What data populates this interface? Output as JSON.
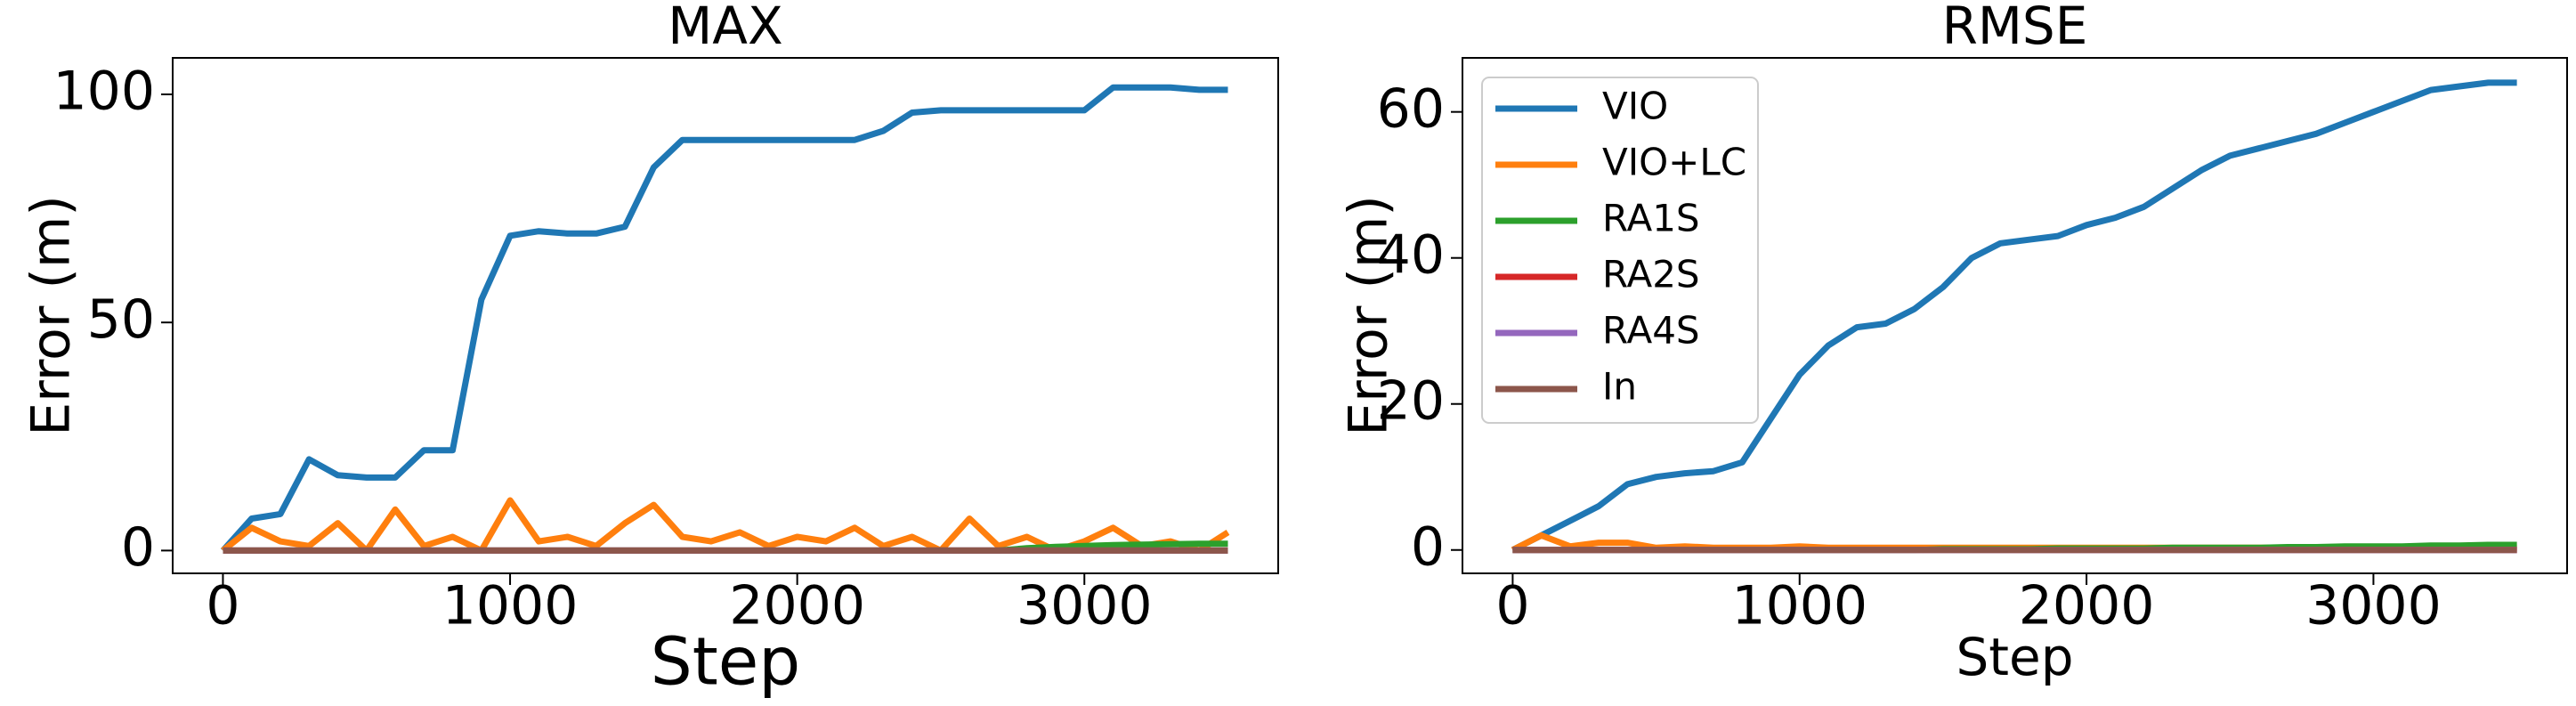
{
  "chart_data": [
    {
      "type": "line",
      "title": "MAX",
      "x_label": "Step",
      "y_label": "Error (m)",
      "x": [
        0,
        100,
        200,
        300,
        400,
        500,
        600,
        700,
        800,
        900,
        1000,
        1100,
        1200,
        1300,
        1400,
        1500,
        1600,
        1700,
        1800,
        1900,
        2000,
        2100,
        2200,
        2300,
        2400,
        2500,
        2600,
        2700,
        2800,
        2900,
        3000,
        3100,
        3200,
        3300,
        3400,
        3500
      ],
      "xlim": [
        -175,
        3675
      ],
      "ylim": [
        -5,
        108
      ],
      "xticks": [
        0,
        1000,
        2000,
        3000
      ],
      "yticks": [
        0,
        50,
        100
      ],
      "series": [
        {
          "color": "#1f77b4",
          "values": [
            0,
            7,
            8,
            20,
            16.5,
            16,
            16,
            22,
            22,
            55,
            69,
            70,
            69.5,
            69.5,
            71,
            84,
            90,
            90,
            90,
            90,
            90,
            90,
            90,
            92,
            96,
            96.5,
            96.5,
            96.5,
            96.5,
            96.5,
            96.5,
            101.5,
            101.5,
            101.5,
            101,
            101
          ]
        },
        {
          "color": "#ff7f0e",
          "values": [
            0,
            5,
            2,
            1,
            6,
            0,
            9,
            1,
            3,
            0,
            11,
            2,
            3,
            1,
            6,
            10,
            3,
            2,
            4,
            1,
            3,
            2,
            5,
            1,
            3,
            0,
            7,
            1,
            3,
            0,
            2,
            5,
            1,
            2,
            0,
            4
          ]
        },
        {
          "color": "#2ca02c",
          "values": [
            0,
            0,
            0,
            0,
            0,
            0,
            0,
            0,
            0,
            0,
            0,
            0,
            0,
            0,
            0,
            0,
            0,
            0,
            0,
            0,
            0,
            0,
            0,
            0,
            0,
            0,
            0,
            0,
            0.5,
            0.8,
            1,
            1.2,
            1.3,
            1.4,
            1.5,
            1.5
          ]
        },
        {
          "color": "#d62728",
          "values": [
            0,
            0,
            0,
            0,
            0,
            0,
            0,
            0,
            0,
            0,
            0,
            0,
            0,
            0,
            0,
            0,
            0,
            0,
            0,
            0,
            0,
            0,
            0,
            0,
            0,
            0,
            0,
            0,
            0,
            0,
            0,
            0,
            0,
            0,
            0,
            0
          ]
        },
        {
          "color": "#9467bd",
          "values": [
            0,
            0,
            0,
            0,
            0,
            0,
            0,
            0,
            0,
            0,
            0,
            0,
            0,
            0,
            0,
            0,
            0,
            0,
            0,
            0,
            0,
            0,
            0,
            0,
            0,
            0,
            0,
            0,
            0,
            0,
            0,
            0,
            0,
            0,
            0,
            0
          ]
        },
        {
          "color": "#8c564b",
          "values": [
            0,
            0,
            0,
            0,
            0,
            0,
            0,
            0,
            0,
            0,
            0,
            0,
            0,
            0,
            0,
            0,
            0,
            0,
            0,
            0,
            0,
            0,
            0,
            0,
            0,
            0,
            0,
            0,
            0,
            0,
            0,
            0,
            0,
            0,
            0,
            0
          ]
        }
      ]
    },
    {
      "type": "line",
      "title": "RMSE",
      "x_label": "Step",
      "y_label": "Error (m)",
      "legend": "upper left",
      "x": [
        0,
        100,
        200,
        300,
        400,
        500,
        600,
        700,
        800,
        900,
        1000,
        1100,
        1200,
        1300,
        1400,
        1500,
        1600,
        1700,
        1800,
        1900,
        2000,
        2100,
        2200,
        2300,
        2400,
        2500,
        2600,
        2700,
        2800,
        2900,
        3000,
        3100,
        3200,
        3300,
        3400,
        3500
      ],
      "xlim": [
        -175,
        3675
      ],
      "ylim": [
        -3.2,
        67.4
      ],
      "xticks": [
        0,
        1000,
        2000,
        3000
      ],
      "yticks": [
        0,
        20,
        40,
        60
      ],
      "series": [
        {
          "name": "VIO",
          "color": "#1f77b4",
          "values": [
            0,
            2,
            4,
            6,
            9,
            10,
            10.5,
            10.8,
            12,
            18,
            24,
            28,
            30.5,
            31,
            33,
            36,
            40,
            42,
            42.5,
            43,
            44.5,
            45.5,
            47,
            49.5,
            52,
            54,
            55,
            56,
            57,
            58.5,
            60,
            61.5,
            63,
            63.5,
            64,
            64
          ]
        },
        {
          "name": "VIO+LC",
          "color": "#ff7f0e",
          "values": [
            0,
            2,
            0.5,
            1,
            1,
            0.3,
            0.5,
            0.3,
            0.3,
            0.3,
            0.5,
            0.3,
            0.3,
            0.3,
            0.3,
            0.3,
            0.3,
            0.3,
            0.3,
            0.3,
            0.3,
            0.3,
            0.3,
            0.3,
            0.3,
            0.3,
            0.3,
            0.3,
            0.3,
            0.3,
            0.3,
            0.3,
            0.3,
            0.3,
            0.3,
            0.3
          ]
        },
        {
          "name": "RA1S",
          "color": "#2ca02c",
          "values": [
            0,
            0,
            0,
            0,
            0,
            0,
            0,
            0,
            0,
            0,
            0,
            0,
            0,
            0,
            0,
            0.1,
            0.1,
            0.1,
            0.1,
            0.2,
            0.2,
            0.2,
            0.2,
            0.3,
            0.3,
            0.3,
            0.3,
            0.4,
            0.4,
            0.5,
            0.5,
            0.5,
            0.6,
            0.6,
            0.7,
            0.7
          ]
        },
        {
          "name": "RA2S",
          "color": "#d62728",
          "values": [
            0,
            0,
            0,
            0,
            0,
            0,
            0,
            0,
            0,
            0,
            0,
            0,
            0,
            0,
            0,
            0,
            0,
            0,
            0,
            0,
            0,
            0,
            0,
            0,
            0,
            0,
            0,
            0,
            0,
            0,
            0,
            0,
            0,
            0,
            0,
            0
          ]
        },
        {
          "name": "RA4S",
          "color": "#9467bd",
          "values": [
            0,
            0,
            0,
            0,
            0,
            0,
            0,
            0,
            0,
            0,
            0,
            0,
            0,
            0,
            0,
            0,
            0,
            0,
            0,
            0,
            0,
            0,
            0,
            0,
            0,
            0,
            0,
            0,
            0,
            0,
            0,
            0,
            0,
            0,
            0,
            0
          ]
        },
        {
          "name": "In",
          "color": "#8c564b",
          "values": [
            0,
            0,
            0,
            0,
            0,
            0,
            0,
            0,
            0,
            0,
            0,
            0,
            0,
            0,
            0,
            0,
            0,
            0,
            0,
            0,
            0,
            0,
            0,
            0,
            0,
            0,
            0,
            0,
            0,
            0,
            0,
            0,
            0,
            0,
            0,
            0
          ]
        }
      ]
    }
  ]
}
